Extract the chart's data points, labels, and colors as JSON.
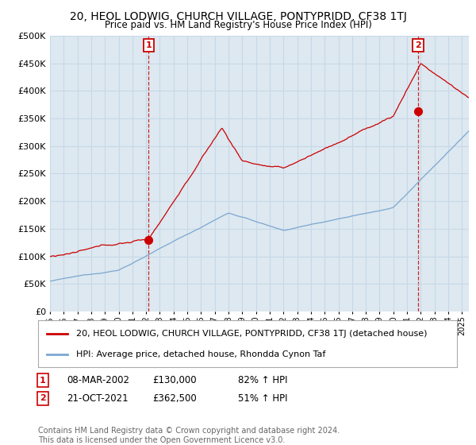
{
  "title": "20, HEOL LODWIG, CHURCH VILLAGE, PONTYPRIDD, CF38 1TJ",
  "subtitle": "Price paid vs. HM Land Registry's House Price Index (HPI)",
  "ytick_values": [
    0,
    50000,
    100000,
    150000,
    200000,
    250000,
    300000,
    350000,
    400000,
    450000,
    500000
  ],
  "ylim": [
    0,
    500000
  ],
  "xlim_start": 1995.0,
  "xlim_end": 2025.5,
  "red_line_color": "#cc0000",
  "blue_line_color": "#7ba7d0",
  "marker_color": "#cc0000",
  "vline_color": "#cc0000",
  "grid_color": "#c8d8e8",
  "plot_bg_color": "#dde8f0",
  "background_color": "#ffffff",
  "legend_label_red": "20, HEOL LODWIG, CHURCH VILLAGE, PONTYPRIDD, CF38 1TJ (detached house)",
  "legend_label_blue": "HPI: Average price, detached house, Rhondda Cynon Taf",
  "transaction1_label": "1",
  "transaction1_date": "08-MAR-2002",
  "transaction1_price": "£130,000",
  "transaction1_hpi": "82% ↑ HPI",
  "transaction1_x": 2002.18,
  "transaction1_y": 130000,
  "transaction2_label": "2",
  "transaction2_date": "21-OCT-2021",
  "transaction2_price": "£362,500",
  "transaction2_hpi": "51% ↑ HPI",
  "transaction2_x": 2021.8,
  "transaction2_y": 362500,
  "footer": "Contains HM Land Registry data © Crown copyright and database right 2024.\nThis data is licensed under the Open Government Licence v3.0.",
  "title_fontsize": 10,
  "tick_fontsize": 8,
  "legend_fontsize": 8,
  "footer_fontsize": 7
}
